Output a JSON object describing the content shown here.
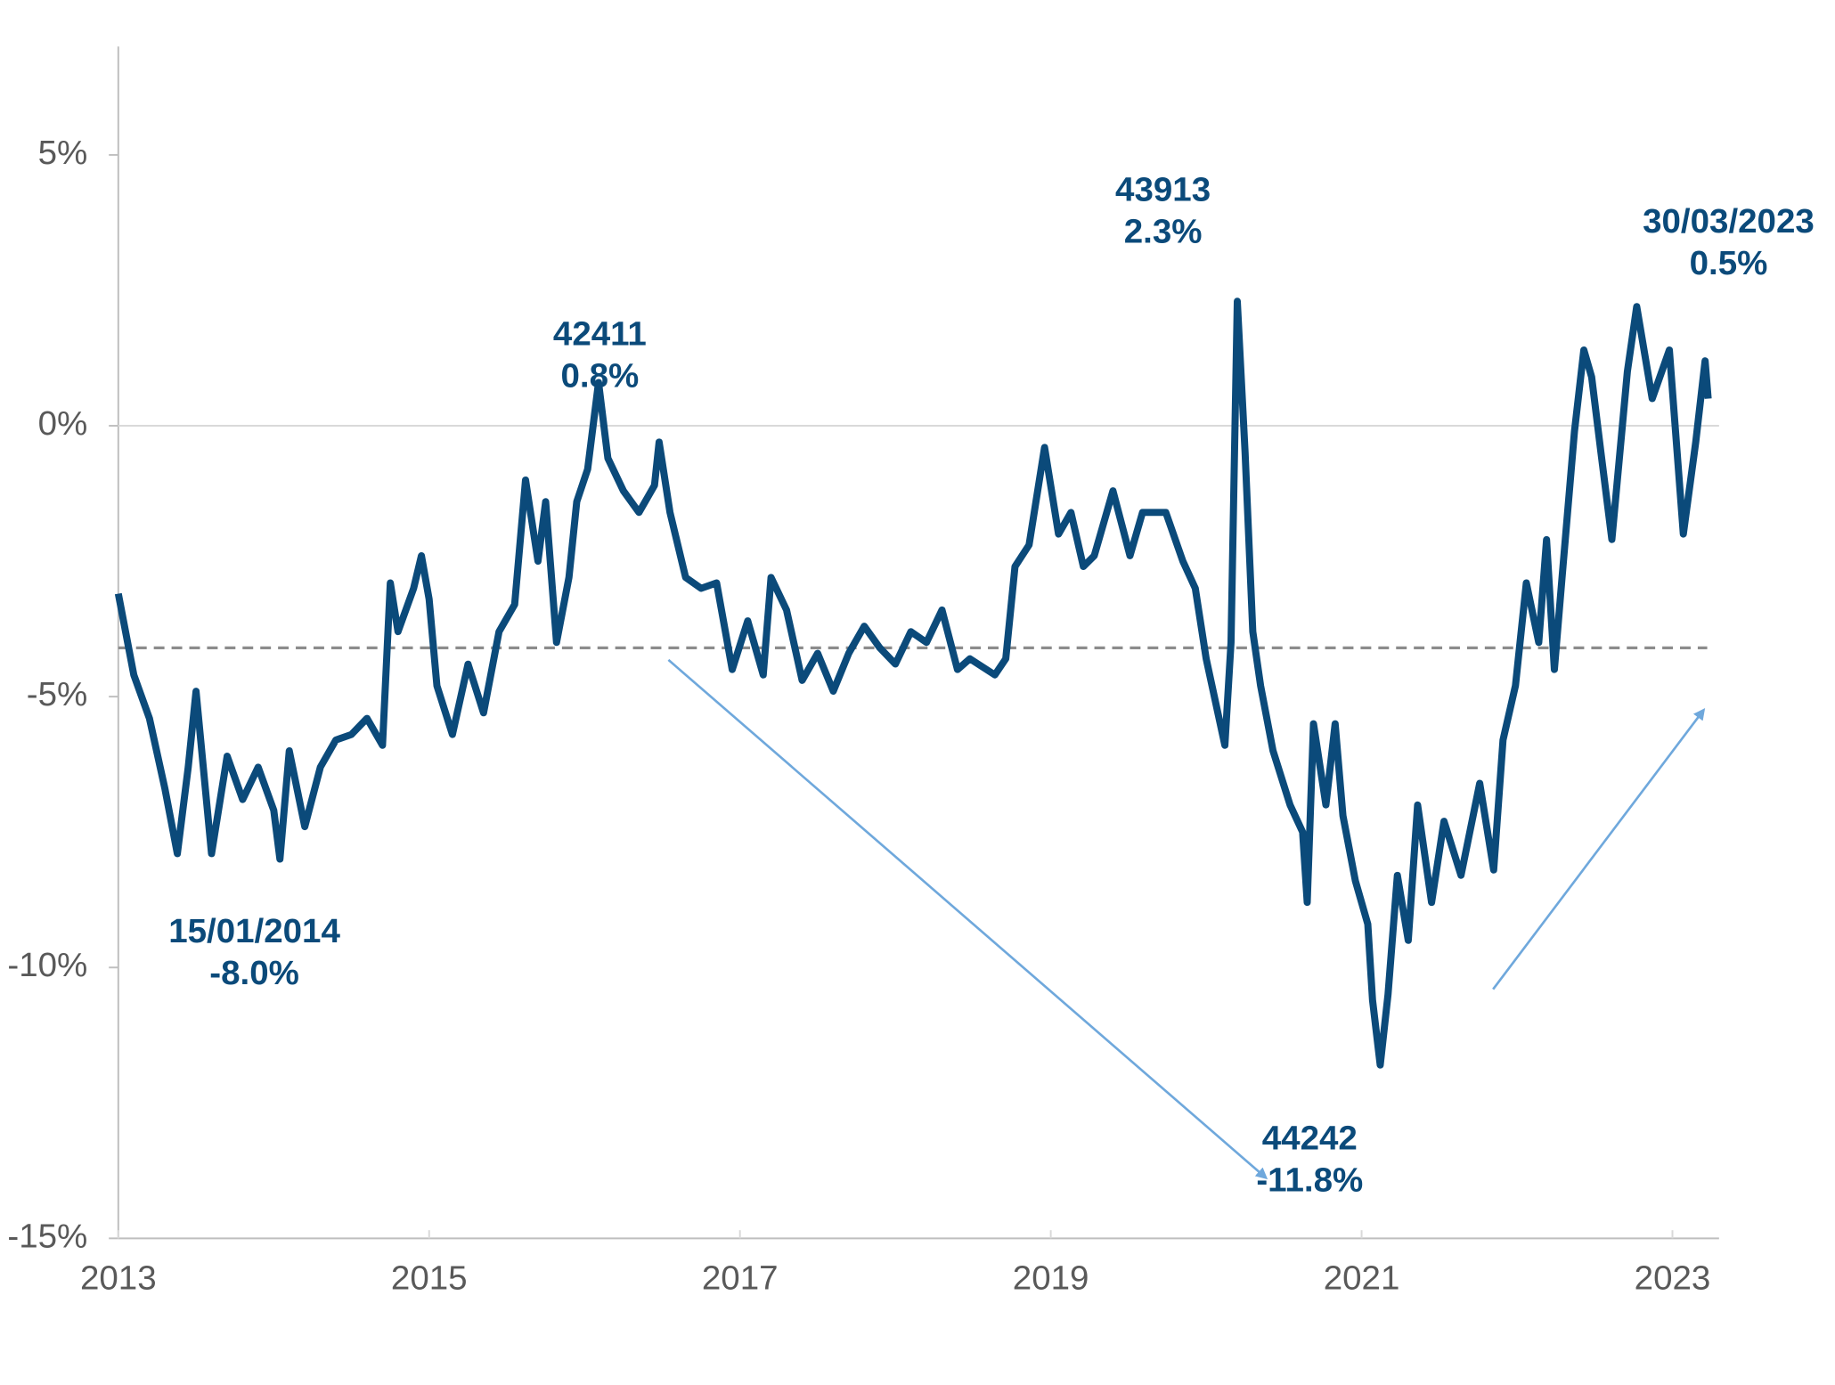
{
  "chart_data": {
    "type": "line",
    "x": [
      2013.0,
      2013.1,
      2013.2,
      2013.3,
      2013.38,
      2013.45,
      2013.5,
      2013.6,
      2013.7,
      2013.8,
      2013.9,
      2014.0,
      2014.04,
      2014.1,
      2014.2,
      2014.3,
      2014.4,
      2014.5,
      2014.6,
      2014.7,
      2014.75,
      2014.8,
      2014.9,
      2014.95,
      2015.0,
      2015.05,
      2015.15,
      2015.25,
      2015.35,
      2015.45,
      2015.55,
      2015.62,
      2015.7,
      2015.75,
      2015.82,
      2015.9,
      2015.95,
      2016.02,
      2016.09,
      2016.15,
      2016.25,
      2016.35,
      2016.45,
      2016.48,
      2016.55,
      2016.65,
      2016.75,
      2016.85,
      2016.95,
      2017.05,
      2017.15,
      2017.2,
      2017.3,
      2017.4,
      2017.5,
      2017.6,
      2017.7,
      2017.8,
      2017.9,
      2018.0,
      2018.1,
      2018.2,
      2018.3,
      2018.4,
      2018.48,
      2018.64,
      2018.71,
      2018.77,
      2018.86,
      2018.96,
      2019.05,
      2019.13,
      2019.21,
      2019.28,
      2019.4,
      2019.51,
      2019.59,
      2019.74,
      2019.85,
      2019.93,
      2020.0,
      2020.12,
      2020.16,
      2020.2,
      2020.25,
      2020.3,
      2020.35,
      2020.43,
      2020.54,
      2020.62,
      2020.65,
      2020.69,
      2020.77,
      2020.83,
      2020.88,
      2020.96,
      2021.04,
      2021.07,
      2021.12,
      2021.17,
      2021.23,
      2021.3,
      2021.36,
      2021.45,
      2021.53,
      2021.64,
      2021.76,
      2021.85,
      2021.91,
      2021.99,
      2022.06,
      2022.14,
      2022.19,
      2022.24,
      2022.29,
      2022.37,
      2022.43,
      2022.48,
      2022.54,
      2022.61,
      2022.71,
      2022.77,
      2022.87,
      2022.98,
      2023.07,
      2023.15,
      2023.21,
      2023.23
    ],
    "series": [
      {
        "color": "#0b4a7a",
        "values": [
          -3.1,
          -4.6,
          -5.4,
          -6.7,
          -7.9,
          -6.3,
          -4.9,
          -7.9,
          -6.1,
          -6.9,
          -6.3,
          -7.1,
          -8.0,
          -6.0,
          -7.4,
          -6.3,
          -5.8,
          -5.7,
          -5.4,
          -5.9,
          -2.9,
          -3.8,
          -3.0,
          -2.4,
          -3.2,
          -4.8,
          -5.7,
          -4.4,
          -5.3,
          -3.8,
          -3.3,
          -1.0,
          -2.5,
          -1.4,
          -4.0,
          -2.8,
          -1.4,
          -0.8,
          0.8,
          -0.6,
          -1.2,
          -1.6,
          -1.1,
          -0.3,
          -1.6,
          -2.8,
          -3.0,
          -2.9,
          -4.5,
          -3.6,
          -4.6,
          -2.8,
          -3.4,
          -4.7,
          -4.2,
          -4.9,
          -4.2,
          -3.7,
          -4.1,
          -4.4,
          -3.8,
          -4.0,
          -3.4,
          -4.5,
          -4.3,
          -4.6,
          -4.3,
          -2.6,
          -2.2,
          -0.4,
          -2.0,
          -1.6,
          -2.6,
          -2.4,
          -1.2,
          -2.4,
          -1.6,
          -1.6,
          -2.5,
          -3.0,
          -4.3,
          -5.9,
          -4.0,
          2.3,
          -0.5,
          -3.8,
          -4.8,
          -6.0,
          -7.0,
          -7.5,
          -8.8,
          -5.5,
          -7.0,
          -5.5,
          -7.2,
          -8.4,
          -9.2,
          -10.6,
          -11.8,
          -10.5,
          -8.3,
          -9.5,
          -7.0,
          -8.8,
          -7.3,
          -8.3,
          -6.6,
          -8.2,
          -5.8,
          -4.8,
          -2.9,
          -4.0,
          -2.1,
          -4.5,
          -2.8,
          -0.1,
          1.4,
          0.9,
          -0.5,
          -2.1,
          1.0,
          2.2,
          0.5,
          1.4,
          -2.0,
          -0.3,
          1.2,
          0.5
        ]
      }
    ],
    "reference_line": -4.1,
    "xlim": [
      2013,
      2023.3
    ],
    "xticks": [
      2013,
      2015,
      2017,
      2019,
      2021,
      2023
    ],
    "ylim": [
      -15,
      7
    ],
    "yticks": [
      {
        "value": 5,
        "label": "5%"
      },
      {
        "value": 0,
        "label": "0%"
      },
      {
        "value": -5,
        "label": "-5%"
      },
      {
        "value": -10,
        "label": "-10%"
      },
      {
        "value": -15,
        "label": "-15%"
      }
    ],
    "annotations": [
      [
        "15/01/2014",
        "-8.0%"
      ],
      [
        "42411",
        "0.8%"
      ],
      [
        "43913",
        "2.3%"
      ],
      [
        "44242",
        "-11.8%"
      ],
      [
        "30/03/2023",
        "0.5%"
      ]
    ]
  }
}
